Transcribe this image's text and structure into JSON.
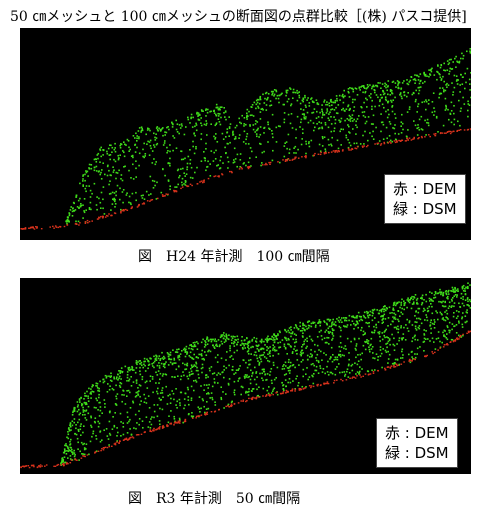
{
  "title": "50 ㎝メッシュと 100 ㎝メッシュの断面図の点群比較［(株) パスコ提供]",
  "legend": {
    "red": "赤 : DEM",
    "green": "緑 : DSM"
  },
  "colors": {
    "dsm": "#3fdc1a",
    "dem": "#d8321c",
    "background": "#000000"
  },
  "panels": [
    {
      "id": "h24",
      "caption": "図　H24 年計測　100 ㎝間隔"
    },
    {
      "id": "r3",
      "caption": "図　R3 年計測　50 ㎝間隔"
    }
  ]
}
